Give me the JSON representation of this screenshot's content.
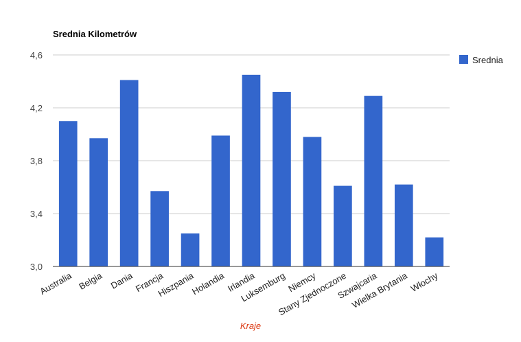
{
  "chart_data": {
    "type": "bar",
    "title": "Srednia Kilometrów",
    "xlabel": "Kraje",
    "ylabel": "",
    "ylim": [
      3.0,
      4.6
    ],
    "yticks": [
      "3,0",
      "3,4",
      "3,8",
      "4,2",
      "4,6"
    ],
    "ytick_values": [
      3.0,
      3.4,
      3.8,
      4.2,
      4.6
    ],
    "grid": true,
    "legend_position": "right",
    "categories": [
      "Australia",
      "Belgia",
      "Dania",
      "Francja",
      "Hiszpania",
      "Holandia",
      "Irlandia",
      "Luksemburg",
      "Niemcy",
      "Stany Zjednoczone",
      "Szwajcaria",
      "Wielka Brytania",
      "Włochy"
    ],
    "series": [
      {
        "name": "Srednia",
        "color": "#3366cc",
        "values": [
          4.1,
          3.97,
          4.41,
          3.57,
          3.25,
          3.99,
          4.45,
          4.32,
          3.98,
          3.61,
          4.29,
          3.62,
          3.22
        ]
      }
    ]
  }
}
